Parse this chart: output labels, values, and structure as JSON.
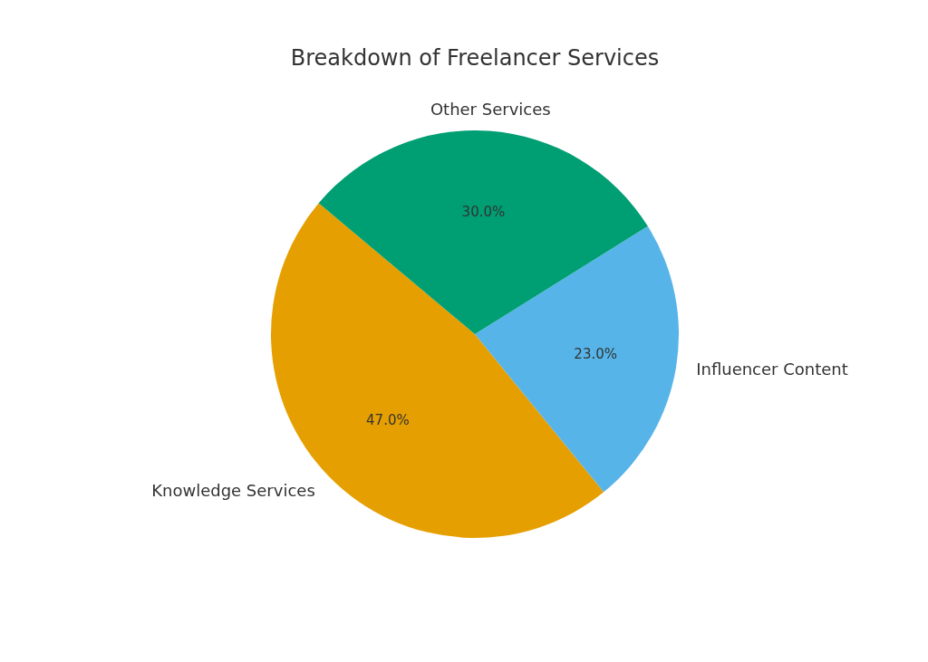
{
  "chart_data": {
    "type": "pie",
    "title": "Breakdown of Freelancer Services",
    "categories": [
      "Knowledge Services",
      "Influencer Content",
      "Other Services"
    ],
    "values": [
      47,
      23,
      30
    ],
    "value_labels": [
      "47.0%",
      "23.0%",
      "30.0%"
    ],
    "colors": [
      "#e69f00",
      "#56b4e9",
      "#009e73"
    ]
  }
}
